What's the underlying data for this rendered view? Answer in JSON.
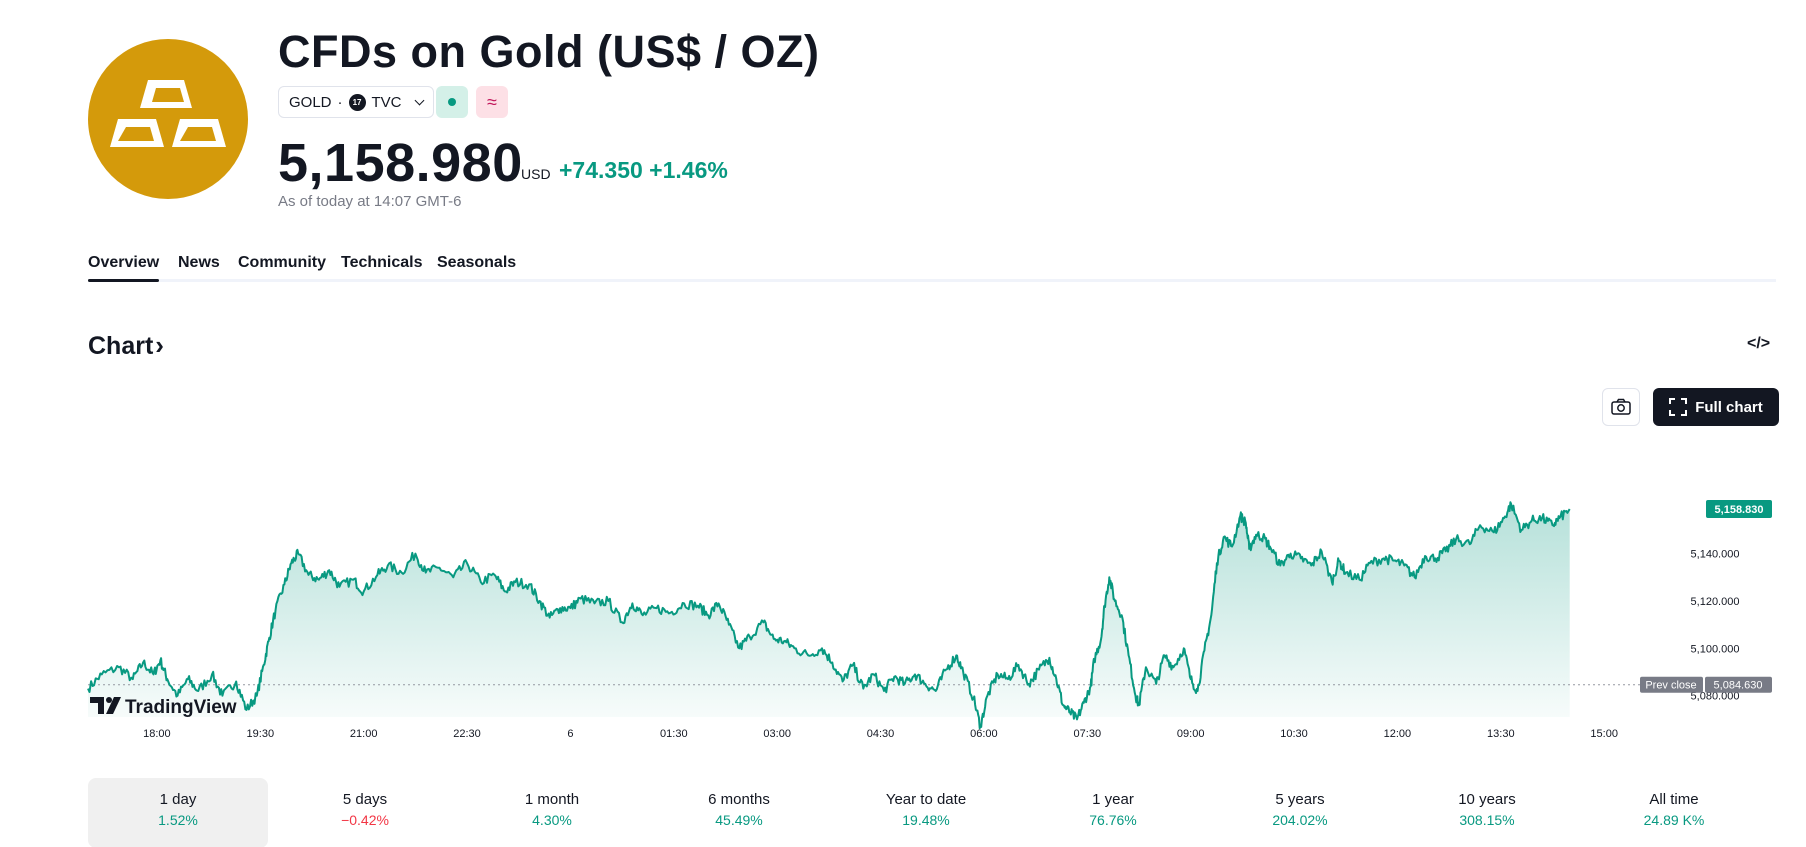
{
  "header": {
    "title": "CFDs on Gold (US$ / OZ)",
    "symbol": "GOLD",
    "separator": "·",
    "exchange": "TVC",
    "exchange_icon_text": "17",
    "wave_symbol": "≈",
    "price": "5,158.980",
    "currency": "USD",
    "change": "+74.350 +1.46%",
    "as_of": "As of today at 14:07 GMT-6"
  },
  "tabs": [
    {
      "label": "Overview"
    },
    {
      "label": "News"
    },
    {
      "label": "Community"
    },
    {
      "label": "Technicals"
    },
    {
      "label": "Seasonals"
    }
  ],
  "chart_section": {
    "title": "Chart",
    "arrow": "›",
    "embed_symbol": "</>",
    "full_chart_label": "Full chart",
    "watermark": "TradingView"
  },
  "periods": [
    {
      "label": "1 day",
      "value": "1.52%",
      "dir": "pos"
    },
    {
      "label": "5 days",
      "value": "−0.42%",
      "dir": "neg"
    },
    {
      "label": "1 month",
      "value": "4.30%",
      "dir": "pos"
    },
    {
      "label": "6 months",
      "value": "45.49%",
      "dir": "pos"
    },
    {
      "label": "Year to date",
      "value": "19.48%",
      "dir": "pos"
    },
    {
      "label": "1 year",
      "value": "76.76%",
      "dir": "pos"
    },
    {
      "label": "5 years",
      "value": "204.02%",
      "dir": "pos"
    },
    {
      "label": "10 years",
      "value": "308.15%",
      "dir": "pos"
    },
    {
      "label": "All time",
      "value": "24.89 K%",
      "dir": "pos"
    }
  ],
  "colors": {
    "accent": "#089981",
    "negative": "#f23645",
    "brand_gold": "#d49a0b",
    "badge_dark": "#131722"
  },
  "chart_data": {
    "type": "area",
    "title": "",
    "xlabel": "",
    "ylabel": "USD",
    "ylim": [
      5071,
      5188
    ],
    "x_ticks": [
      "18:00",
      "19:30",
      "21:00",
      "22:30",
      "6",
      "01:30",
      "03:00",
      "04:30",
      "06:00",
      "07:30",
      "09:00",
      "10:30",
      "12:00",
      "13:30",
      "15:00"
    ],
    "x_tick_hours": [
      18,
      19.5,
      21,
      22.5,
      24,
      25.5,
      27,
      28.5,
      30,
      31.5,
      33,
      34.5,
      36,
      37.5,
      39
    ],
    "x_range_hours": [
      17,
      39.52
    ],
    "y_ticks": [
      5080,
      5100,
      5120,
      5140
    ],
    "y_tick_labels": [
      "5,080.000",
      "5,100.000",
      "5,120.000",
      "5,140.000"
    ],
    "prev_close": 5084.63,
    "prev_close_label": "Prev close",
    "prev_close_value_label": "5,084.630",
    "last_value": 5158.83,
    "last_value_label": "5,158.830",
    "series": [
      {
        "name": "GOLD",
        "points": [
          [
            17.0,
            5083
          ],
          [
            17.2,
            5089
          ],
          [
            17.45,
            5092
          ],
          [
            17.65,
            5087
          ],
          [
            17.8,
            5094
          ],
          [
            17.95,
            5089
          ],
          [
            18.05,
            5095
          ],
          [
            18.15,
            5087
          ],
          [
            18.3,
            5080
          ],
          [
            18.45,
            5087
          ],
          [
            18.6,
            5082
          ],
          [
            18.8,
            5089
          ],
          [
            18.95,
            5080
          ],
          [
            19.15,
            5086
          ],
          [
            19.3,
            5074
          ],
          [
            19.45,
            5080
          ],
          [
            19.55,
            5093
          ],
          [
            19.62,
            5103
          ],
          [
            19.72,
            5116
          ],
          [
            19.85,
            5127
          ],
          [
            19.95,
            5136
          ],
          [
            20.05,
            5140
          ],
          [
            20.2,
            5131
          ],
          [
            20.35,
            5129
          ],
          [
            20.5,
            5133
          ],
          [
            20.65,
            5126
          ],
          [
            20.85,
            5129
          ],
          [
            21.0,
            5124
          ],
          [
            21.2,
            5131
          ],
          [
            21.35,
            5135
          ],
          [
            21.55,
            5132
          ],
          [
            21.75,
            5140
          ],
          [
            21.9,
            5132
          ],
          [
            22.1,
            5134
          ],
          [
            22.3,
            5130
          ],
          [
            22.5,
            5136
          ],
          [
            22.7,
            5128
          ],
          [
            22.9,
            5131
          ],
          [
            23.05,
            5124
          ],
          [
            23.2,
            5128
          ],
          [
            23.4,
            5127
          ],
          [
            23.55,
            5120
          ],
          [
            23.7,
            5113
          ],
          [
            23.85,
            5117
          ],
          [
            24.0,
            5117
          ],
          [
            24.15,
            5121
          ],
          [
            24.35,
            5119
          ],
          [
            24.55,
            5120
          ],
          [
            24.75,
            5111
          ],
          [
            24.9,
            5119
          ],
          [
            25.05,
            5114
          ],
          [
            25.25,
            5117
          ],
          [
            25.45,
            5115
          ],
          [
            25.65,
            5119
          ],
          [
            25.85,
            5118
          ],
          [
            26.0,
            5114
          ],
          [
            26.15,
            5119
          ],
          [
            26.3,
            5110
          ],
          [
            26.45,
            5100
          ],
          [
            26.6,
            5105
          ],
          [
            26.8,
            5111
          ],
          [
            26.95,
            5104
          ],
          [
            27.1,
            5103
          ],
          [
            27.25,
            5100
          ],
          [
            27.45,
            5097
          ],
          [
            27.65,
            5100
          ],
          [
            27.8,
            5094
          ],
          [
            27.95,
            5086
          ],
          [
            28.1,
            5093
          ],
          [
            28.25,
            5083
          ],
          [
            28.4,
            5089
          ],
          [
            28.55,
            5082
          ],
          [
            28.7,
            5088
          ],
          [
            28.85,
            5085
          ],
          [
            29.0,
            5089
          ],
          [
            29.15,
            5085
          ],
          [
            29.3,
            5082
          ],
          [
            29.45,
            5091
          ],
          [
            29.6,
            5097
          ],
          [
            29.7,
            5090
          ],
          [
            29.85,
            5079
          ],
          [
            29.95,
            5067
          ],
          [
            30.05,
            5080
          ],
          [
            30.2,
            5089
          ],
          [
            30.35,
            5087
          ],
          [
            30.5,
            5093
          ],
          [
            30.65,
            5085
          ],
          [
            30.8,
            5091
          ],
          [
            30.95,
            5096
          ],
          [
            31.05,
            5087
          ],
          [
            31.15,
            5076
          ],
          [
            31.25,
            5073
          ],
          [
            31.35,
            5070
          ],
          [
            31.45,
            5077
          ],
          [
            31.55,
            5084
          ],
          [
            31.6,
            5095
          ],
          [
            31.7,
            5104
          ],
          [
            31.75,
            5118
          ],
          [
            31.82,
            5130
          ],
          [
            31.9,
            5120
          ],
          [
            32.0,
            5114
          ],
          [
            32.1,
            5097
          ],
          [
            32.2,
            5080
          ],
          [
            32.25,
            5076
          ],
          [
            32.35,
            5092
          ],
          [
            32.5,
            5085
          ],
          [
            32.62,
            5097
          ],
          [
            32.75,
            5092
          ],
          [
            32.9,
            5100
          ],
          [
            33.0,
            5087
          ],
          [
            33.1,
            5082
          ],
          [
            33.2,
            5099
          ],
          [
            33.3,
            5114
          ],
          [
            33.38,
            5136
          ],
          [
            33.48,
            5147
          ],
          [
            33.6,
            5143
          ],
          [
            33.72,
            5156
          ],
          [
            33.8,
            5153
          ],
          [
            33.85,
            5142
          ],
          [
            33.95,
            5148
          ],
          [
            34.05,
            5147
          ],
          [
            34.15,
            5143
          ],
          [
            34.3,
            5135
          ],
          [
            34.45,
            5140
          ],
          [
            34.6,
            5138
          ],
          [
            34.75,
            5135
          ],
          [
            34.9,
            5141
          ],
          [
            35.05,
            5128
          ],
          [
            35.15,
            5137
          ],
          [
            35.25,
            5132
          ],
          [
            35.45,
            5129
          ],
          [
            35.6,
            5136
          ],
          [
            35.8,
            5138
          ],
          [
            35.95,
            5137
          ],
          [
            36.1,
            5135
          ],
          [
            36.25,
            5130
          ],
          [
            36.4,
            5139
          ],
          [
            36.55,
            5138
          ],
          [
            36.7,
            5141
          ],
          [
            36.85,
            5146
          ],
          [
            37.05,
            5144
          ],
          [
            37.2,
            5152
          ],
          [
            37.4,
            5149
          ],
          [
            37.55,
            5155
          ],
          [
            37.65,
            5161
          ],
          [
            37.8,
            5150
          ],
          [
            37.95,
            5154
          ],
          [
            38.1,
            5155
          ],
          [
            38.25,
            5152
          ],
          [
            38.35,
            5155
          ],
          [
            38.5,
            5158.83
          ]
        ]
      }
    ]
  }
}
